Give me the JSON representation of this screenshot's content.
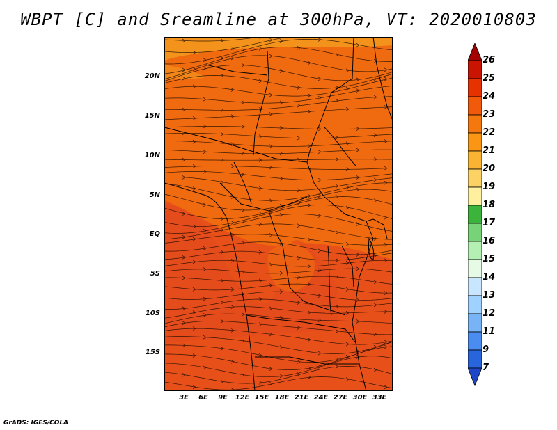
{
  "title": "WBPT [C] and Sreamline at 300hPa, VT: 2020010803",
  "credit": "GrADS: IGES/COLA",
  "lat_labels": [
    "20N",
    "15N",
    "10N",
    "5N",
    "EQ",
    "5S",
    "10S",
    "15S"
  ],
  "lon_labels": [
    "3E",
    "6E",
    "9E",
    "12E",
    "15E",
    "18E",
    "21E",
    "24E",
    "27E",
    "30E",
    "33E"
  ],
  "colorbar": {
    "labels": [
      "26",
      "25",
      "24",
      "23",
      "22",
      "21",
      "20",
      "19",
      "18",
      "17",
      "16",
      "15",
      "14",
      "13",
      "12",
      "11",
      "9",
      "7"
    ],
    "colors": [
      "#a50000",
      "#c81400",
      "#e63200",
      "#f05a0a",
      "#f5780f",
      "#fa9614",
      "#fab432",
      "#fcd264",
      "#fff0a0",
      "#3cb43c",
      "#78d278",
      "#b4f0b4",
      "#e6fae6",
      "#c8e6ff",
      "#a0d2ff",
      "#78b4f5",
      "#4b8cf0",
      "#2864dc",
      "#1e46c8"
    ]
  },
  "map": {
    "field_colors": {
      "base": "#f06a10",
      "warm": "#e8501a",
      "cool": "#f59a1e"
    },
    "extent": {
      "lon": [
        0,
        35
      ],
      "lat": [
        -19,
        24
      ]
    }
  }
}
